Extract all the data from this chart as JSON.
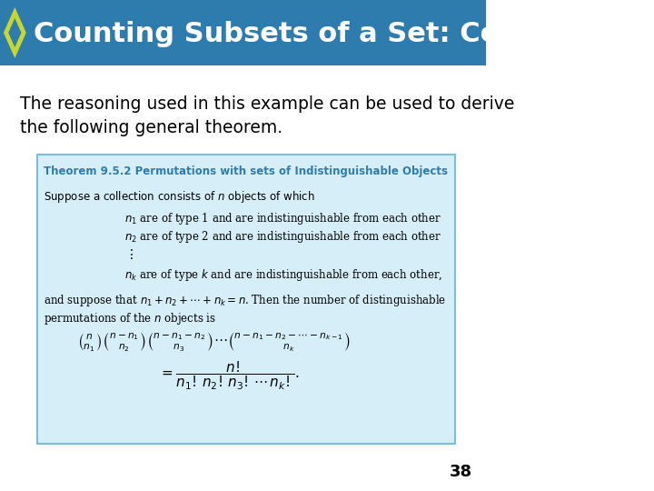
{
  "title": "Counting Subsets of a Set: Combinations",
  "title_bg_color": "#2E7BAE",
  "title_text_color": "#FFFFFF",
  "diamond_outer_color": "#C8D632",
  "diamond_inner_color": "#2E7BAE",
  "body_bg_color": "#FFFFFF",
  "body_text": "The reasoning used in this example can be used to derive\nthe following general theorem.",
  "body_text_color": "#000000",
  "box_bg_color": "#D6EEF8",
  "box_border_color": "#7ABFD6",
  "theorem_title": "Theorem 9.5.2 Permutations with sets of Indistinguishable Objects",
  "theorem_title_color": "#2E7BAE",
  "page_number": "38",
  "page_number_color": "#000000"
}
